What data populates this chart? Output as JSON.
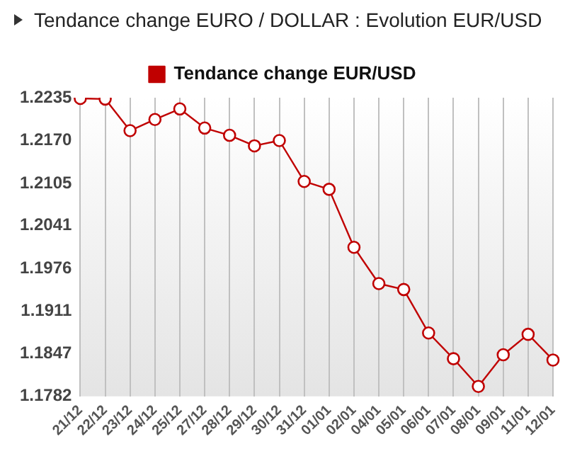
{
  "chart_data": {
    "type": "line",
    "title": "Tendance change EURO / DOLLAR : Evolution EUR/USD",
    "categories": [
      "21/12",
      "22/12",
      "23/12",
      "24/12",
      "25/12",
      "27/12",
      "28/12",
      "29/12",
      "30/12",
      "31/12",
      "01/01",
      "02/01",
      "04/01",
      "05/01",
      "06/01",
      "07/01",
      "08/01",
      "09/01",
      "11/01",
      "12/01"
    ],
    "series": [
      {
        "name": "Tendance change EUR/USD",
        "color": "#c00000",
        "values": [
          1.2234,
          1.2233,
          1.2185,
          1.2202,
          1.2218,
          1.2189,
          1.2178,
          1.2162,
          1.217,
          1.2108,
          1.2096,
          1.2008,
          1.1953,
          1.1944,
          1.1878,
          1.1839,
          1.1797,
          1.1845,
          1.1876,
          1.1837
        ]
      }
    ],
    "ylim": [
      1.1782,
      1.2235
    ],
    "yticks": [
      1.1782,
      1.1847,
      1.1911,
      1.1976,
      1.2041,
      1.2105,
      {
        "value": 1.217,
        "label": "1.2170"
      },
      1.2235
    ],
    "grid": "x",
    "legend": "top",
    "marker": "circle",
    "line_style": "solid"
  }
}
